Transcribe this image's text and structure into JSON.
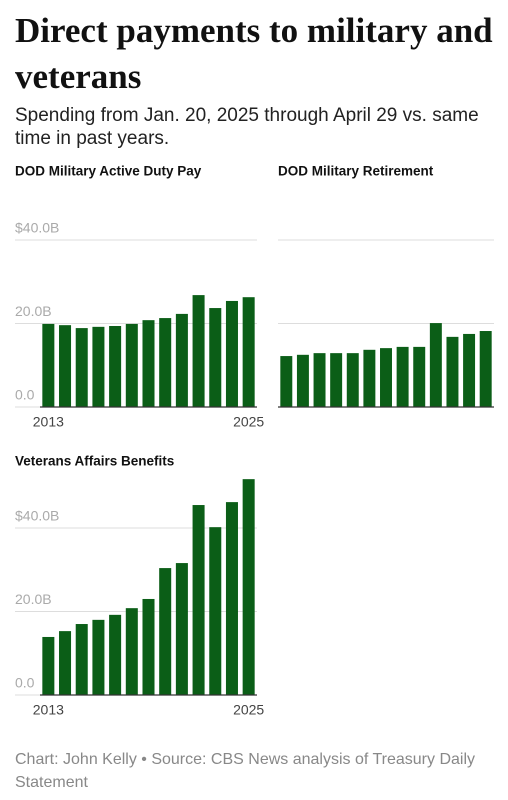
{
  "title": "Direct payments to military and veterans",
  "subtitle": "Spending from Jan. 20, 2025 through April 29 vs. same time in past years.",
  "footer": "Chart: John Kelly • Source: CBS News analysis of Treasury Daily Statement",
  "chart_data": [
    {
      "type": "bar",
      "title": "DOD Military Active Duty Pay",
      "categories": [
        "2013",
        null,
        null,
        null,
        null,
        null,
        null,
        null,
        null,
        null,
        null,
        null,
        "2025"
      ],
      "values": [
        19.9,
        19.6,
        18.9,
        19.2,
        19.4,
        19.9,
        20.8,
        21.3,
        22.3,
        26.8,
        23.7,
        25.4,
        26.3
      ],
      "color": "#0b5e17",
      "ylim": [
        0,
        40
      ],
      "yticks": [
        {
          "value": 0,
          "label": "0.0"
        },
        {
          "value": 20,
          "label": "20.0B"
        },
        {
          "value": 40,
          "label": "$40.0B"
        }
      ],
      "grid": true
    },
    {
      "type": "bar",
      "title": "DOD Military Retirement",
      "values": [
        12.2,
        12.5,
        12.9,
        12.9,
        12.9,
        13.7,
        14.1,
        14.4,
        14.4,
        20.1,
        16.8,
        17.5,
        18.2
      ],
      "color": "#0b5e17",
      "ylim": [
        0,
        40
      ],
      "yticks": [
        0,
        20,
        40
      ],
      "show_tick_labels": false,
      "grid": true
    },
    {
      "type": "bar",
      "title": "Veterans Affairs Benefits",
      "categories": [
        "2013",
        null,
        null,
        null,
        null,
        null,
        null,
        null,
        null,
        null,
        null,
        null,
        "2025"
      ],
      "values": [
        13.9,
        15.3,
        17.0,
        18.0,
        19.2,
        20.8,
        23.0,
        30.4,
        31.6,
        45.5,
        40.2,
        46.2,
        51.7
      ],
      "color": "#0b5e17",
      "ylim": [
        0,
        52
      ],
      "yticks": [
        {
          "value": 0,
          "label": "0.0"
        },
        {
          "value": 20,
          "label": "20.0B"
        },
        {
          "value": 40,
          "label": "$40.0B"
        }
      ],
      "grid": true
    }
  ]
}
